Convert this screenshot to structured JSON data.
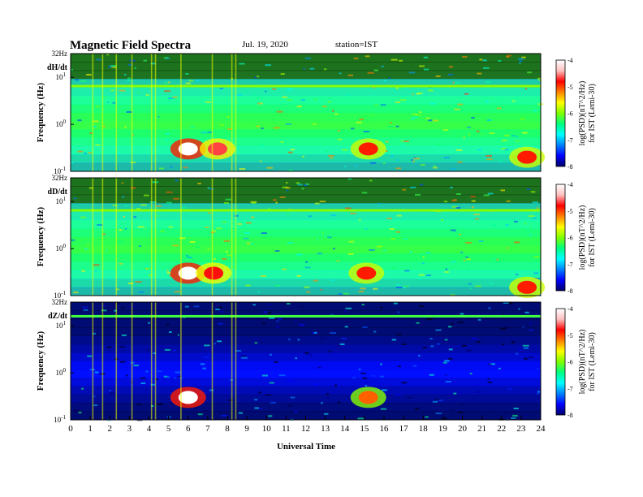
{
  "header": {
    "title": "Magnetic  Field  Spectra",
    "date": "Jul.  19,  2020",
    "station": "station=IST"
  },
  "colors": {
    "colormap": [
      "#000000",
      "#000066",
      "#0000ff",
      "#0080ff",
      "#00ffff",
      "#00ff80",
      "#80ff00",
      "#ffff00",
      "#ff8000",
      "#ff0000",
      "#ffc0c0",
      "#ffffff"
    ]
  },
  "chart_data": {
    "type": "heatmap",
    "xlabel": "Universal Time",
    "x_ticks": [
      "0",
      "1",
      "2",
      "3",
      "4",
      "5",
      "6",
      "7",
      "8",
      "9",
      "10",
      "11",
      "12",
      "13",
      "14",
      "15",
      "16",
      "17",
      "18",
      "19",
      "20",
      "21",
      "22",
      "23",
      "24"
    ],
    "xlim": [
      0,
      24
    ],
    "y_scale": "log",
    "ylabel": "Frequency  (Hz)",
    "y_top_label": "32Hz",
    "y_ticks": [
      {
        "base": "10",
        "exp": "1"
      },
      {
        "base": "10",
        "exp": "0"
      },
      {
        "base": "10",
        "exp": "-1"
      }
    ],
    "ylim_hz": [
      0.1,
      32
    ],
    "colorbar": {
      "ticks": [
        "-4",
        "-5",
        "-6",
        "-7",
        "-8"
      ],
      "range": [
        -8,
        -4
      ],
      "label_line1": "log(PSD)(nT^2/Hz)",
      "label_line2": "for IST (Lemi-30)"
    },
    "panels": [
      {
        "channel": "dH/dt",
        "background_level": -6.0,
        "features": [
          {
            "kind": "hotspot",
            "t": 6.0,
            "f_hz": 0.3,
            "level": -4.0
          },
          {
            "kind": "hotspot",
            "t": 7.5,
            "f_hz": 0.3,
            "level": -4.6
          },
          {
            "kind": "hotspot",
            "t": 15.2,
            "f_hz": 0.3,
            "level": -4.8
          },
          {
            "kind": "hotspot",
            "t": 23.3,
            "f_hz": 0.2,
            "level": -4.8
          },
          {
            "kind": "line",
            "f_hz": 6.5,
            "level": -5.8
          }
        ]
      },
      {
        "channel": "dD/dt",
        "background_level": -6.0,
        "features": [
          {
            "kind": "hotspot",
            "t": 6.0,
            "f_hz": 0.3,
            "level": -4.0
          },
          {
            "kind": "hotspot",
            "t": 7.3,
            "f_hz": 0.3,
            "level": -4.7
          },
          {
            "kind": "hotspot",
            "t": 15.1,
            "f_hz": 0.3,
            "level": -4.8
          },
          {
            "kind": "hotspot",
            "t": 23.3,
            "f_hz": 0.15,
            "level": -4.8
          },
          {
            "kind": "line",
            "f_hz": 6.5,
            "level": -5.8
          }
        ]
      },
      {
        "channel": "dZ/dt",
        "background_level": -7.2,
        "features": [
          {
            "kind": "hotspot",
            "t": 6.0,
            "f_hz": 0.3,
            "level": -4.0
          },
          {
            "kind": "hotspot",
            "t": 15.2,
            "f_hz": 0.3,
            "level": -5.0
          },
          {
            "kind": "line",
            "f_hz": 16.0,
            "level": -6.0
          }
        ]
      }
    ]
  }
}
